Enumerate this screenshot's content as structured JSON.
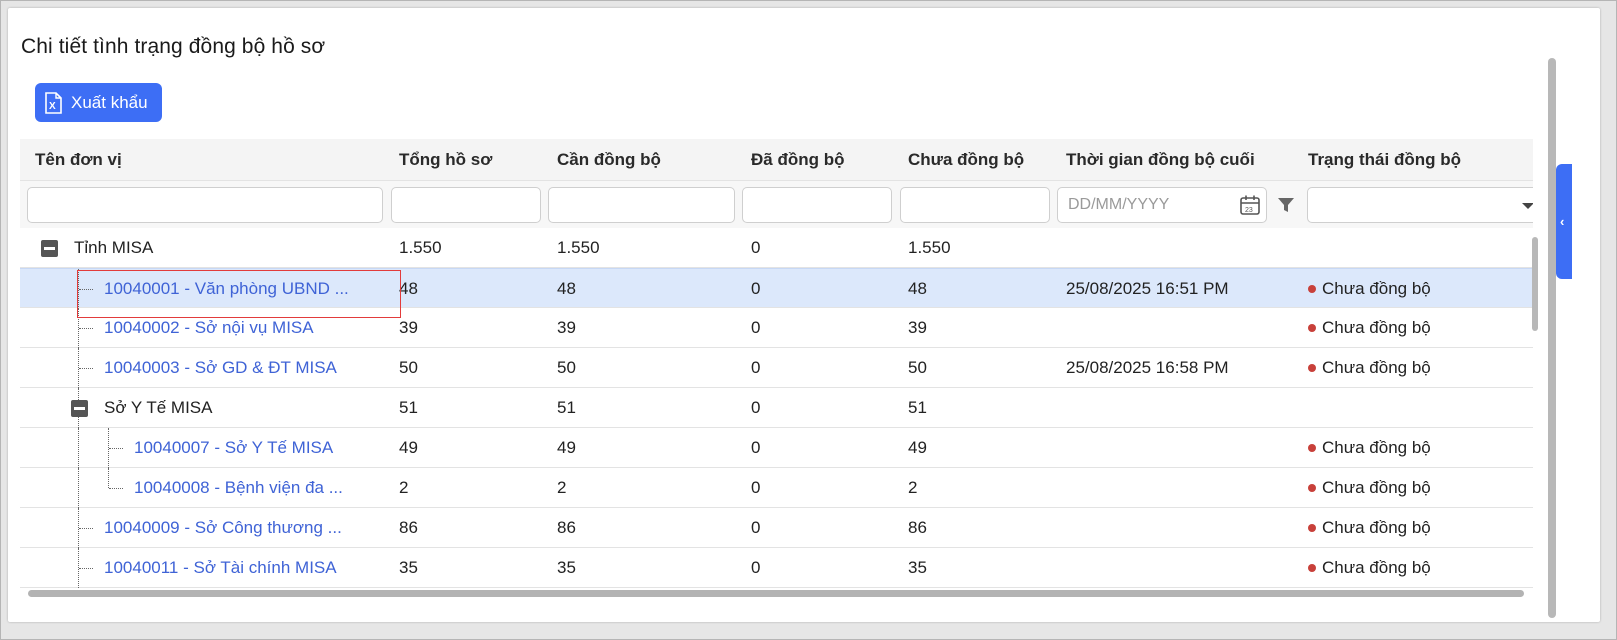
{
  "title": "Chi tiết tình trạng đồng bộ hồ sơ",
  "toolbar": {
    "export_label": "Xuất khẩu",
    "export_icon": "excel-icon"
  },
  "columns": [
    "Tên đơn vị",
    "Tổng hồ sơ",
    "Cần đồng bộ",
    "Đã đồng bộ",
    "Chưa đồng bộ",
    "Thời gian đồng bộ cuối",
    "Trạng thái đồng bộ"
  ],
  "filters": {
    "date_placeholder": "DD/MM/YYYY",
    "calendar_icon_text": "23"
  },
  "rows": [
    {
      "name": "Tỉnh MISA",
      "total": "1.550",
      "need": "1.550",
      "done": "0",
      "pending": "1.550",
      "last_sync": "",
      "status": "",
      "level": 0,
      "group": true,
      "link": false
    },
    {
      "name": "10040001 - Văn phòng UBND ...",
      "total": "48",
      "need": "48",
      "done": "0",
      "pending": "48",
      "last_sync": "25/08/2025 16:51 PM",
      "status": "Chưa đồng bộ",
      "level": 1,
      "group": false,
      "link": true,
      "selected": true
    },
    {
      "name": "10040002 - Sở nội vụ MISA",
      "total": "39",
      "need": "39",
      "done": "0",
      "pending": "39",
      "last_sync": "",
      "status": "Chưa đồng bộ",
      "level": 1,
      "group": false,
      "link": true
    },
    {
      "name": "10040003 - Sở GD & ĐT MISA",
      "total": "50",
      "need": "50",
      "done": "0",
      "pending": "50",
      "last_sync": "25/08/2025 16:58 PM",
      "status": "Chưa đồng bộ",
      "level": 1,
      "group": false,
      "link": true
    },
    {
      "name": "Sở Y Tế MISA",
      "total": "51",
      "need": "51",
      "done": "0",
      "pending": "51",
      "last_sync": "",
      "status": "",
      "level": 1,
      "group": true,
      "link": false
    },
    {
      "name": "10040007 - Sở Y Tế MISA",
      "total": "49",
      "need": "49",
      "done": "0",
      "pending": "49",
      "last_sync": "",
      "status": "Chưa đồng bộ",
      "level": 2,
      "group": false,
      "link": true
    },
    {
      "name": "10040008 - Bệnh viện đa ...",
      "total": "2",
      "need": "2",
      "done": "0",
      "pending": "2",
      "last_sync": "",
      "status": "Chưa đồng bộ",
      "level": 2,
      "group": false,
      "link": true
    },
    {
      "name": "10040009 - Sở Công thương ...",
      "total": "86",
      "need": "86",
      "done": "0",
      "pending": "86",
      "last_sync": "",
      "status": "Chưa đồng bộ",
      "level": 1,
      "group": false,
      "link": true
    },
    {
      "name": "10040011 - Sở Tài chính MISA",
      "total": "35",
      "need": "35",
      "done": "0",
      "pending": "35",
      "last_sync": "",
      "status": "Chưa đồng bộ",
      "level": 1,
      "group": false,
      "link": true
    }
  ],
  "colors": {
    "accent": "#3d6ef5",
    "link": "#3f63d6",
    "status_dot": "#c8403a",
    "selected_row": "#dce8fb",
    "highlight": "#e23b3b"
  }
}
